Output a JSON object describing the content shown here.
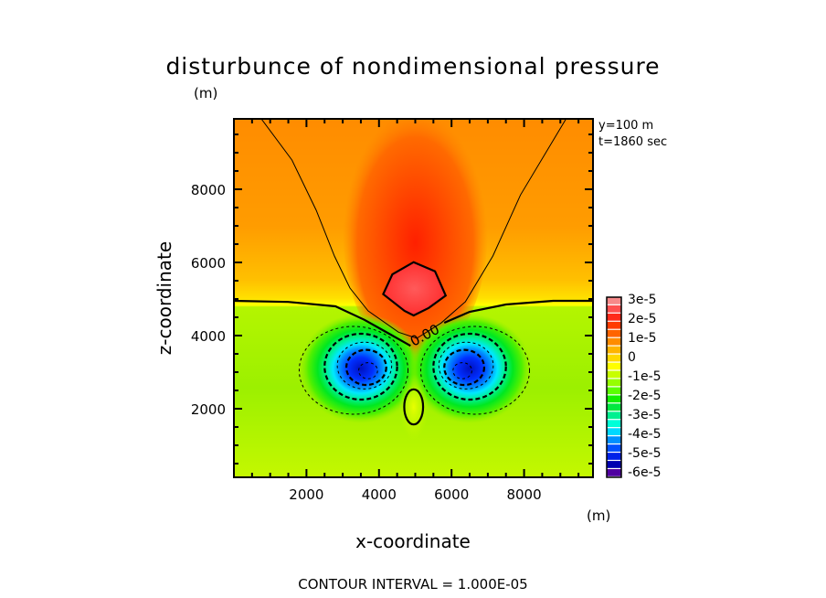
{
  "chart_data": {
    "type": "contour",
    "title": "disturbunce of nondimensional pressure",
    "y_unit": "(m)",
    "x_unit": "(m)",
    "xlabel": "x-coordinate",
    "ylabel": "z-coordinate",
    "info": [
      "y=100 m",
      "t=1860 sec"
    ],
    "footer": "CONTOUR INTERVAL = 1.000E-05",
    "xlim": [
      0,
      9900
    ],
    "ylim": [
      125,
      9925
    ],
    "x_ticks": [
      2000,
      4000,
      6000,
      8000
    ],
    "y_ticks": [
      2000,
      4000,
      6000,
      8000
    ],
    "minor_tick_step": 500,
    "contour_interval": 1e-05,
    "contour_label": "0.00",
    "colorbar": {
      "labels": [
        "3e-5",
        "2e-5",
        "1e-5",
        "0",
        "-1e-5",
        "-2e-5",
        "-3e-5",
        "-4e-5",
        "-5e-5",
        "-6e-5"
      ],
      "colors": [
        "#f78a8a",
        "#ff5050",
        "#ff2a1a",
        "#ff3c00",
        "#ff6400",
        "#ff8c00",
        "#ffb400",
        "#ffd800",
        "#ffff00",
        "#c8ff00",
        "#96ff00",
        "#5aff00",
        "#10f000",
        "#00e840",
        "#00f090",
        "#00ffd8",
        "#00d8ff",
        "#0090ff",
        "#0050ff",
        "#0020e8",
        "#0000b0",
        "#5000a0"
      ]
    },
    "features": {
      "max": {
        "value": 3e-05,
        "x": 5000,
        "z": 5300
      },
      "min": [
        {
          "value": -6e-05,
          "x": 3700,
          "z": 3050
        },
        {
          "value": -6e-05,
          "x": 6300,
          "z": 3050
        }
      ]
    },
    "contours": [
      {
        "level": 0,
        "style": "thick-solid",
        "points": [
          [
            0,
            4950
          ],
          [
            1500,
            4920
          ],
          [
            2800,
            4800
          ],
          [
            3600,
            4430
          ],
          [
            4100,
            4150
          ],
          [
            4870,
            3720
          ]
        ]
      },
      {
        "level": 0,
        "style": "thick-solid",
        "points": [
          [
            5800,
            4350
          ],
          [
            6500,
            4650
          ],
          [
            7500,
            4850
          ],
          [
            8800,
            4950
          ],
          [
            9900,
            4950
          ]
        ]
      },
      {
        "level": 1e-05,
        "style": "thin-solid",
        "points": [
          [
            756,
            9925
          ],
          [
            1600,
            8800
          ],
          [
            2270,
            7425
          ],
          [
            2770,
            6175
          ],
          [
            3200,
            5300
          ],
          [
            3700,
            4675
          ],
          [
            4540,
            4092
          ],
          [
            5040,
            3925
          ],
          [
            5710,
            4342
          ],
          [
            6380,
            4925
          ],
          [
            7140,
            6175
          ],
          [
            7900,
            7842
          ],
          [
            9156,
            9925
          ]
        ]
      },
      {
        "level": 3e-05,
        "style": "thick-solid",
        "closed": true,
        "points": [
          [
            4116,
            5133
          ],
          [
            4368,
            5675
          ],
          [
            4956,
            6008
          ],
          [
            5544,
            5758
          ],
          [
            5838,
            5092
          ],
          [
            5376,
            4758
          ],
          [
            4956,
            4550
          ],
          [
            4704,
            4675
          ]
        ]
      },
      {
        "level": 0,
        "style": "thick-solid",
        "closed": true,
        "ellipse": [
          4956,
          2050,
          260,
          480
        ]
      },
      {
        "level": -1e-05,
        "style": "thin-dashed",
        "ellipse": [
          3300,
          3050,
          1500,
          1200
        ]
      },
      {
        "level": -2e-05,
        "style": "thick-dashed",
        "ellipse": [
          3500,
          3150,
          1000,
          900
        ]
      },
      {
        "level": -3e-05,
        "style": "thin-dashed",
        "ellipse": [
          3600,
          3180,
          750,
          640
        ]
      },
      {
        "level": -4e-05,
        "style": "thick-dashed",
        "ellipse": [
          3650,
          3130,
          550,
          480
        ]
      },
      {
        "level": -5e-05,
        "style": "thin-dashed",
        "ellipse": [
          3700,
          3040,
          260,
          220
        ]
      },
      {
        "level": -1e-05,
        "style": "thin-dashed",
        "ellipse": [
          6650,
          3050,
          1500,
          1200
        ]
      },
      {
        "level": -2e-05,
        "style": "thick-dashed",
        "ellipse": [
          6500,
          3150,
          1000,
          900
        ]
      },
      {
        "level": -3e-05,
        "style": "thin-dashed",
        "ellipse": [
          6400,
          3180,
          750,
          640
        ]
      },
      {
        "level": -4e-05,
        "style": "thick-dashed",
        "ellipse": [
          6350,
          3130,
          550,
          480
        ]
      },
      {
        "level": -5e-05,
        "style": "thin-dashed",
        "ellipse": [
          6300,
          3040,
          260,
          220
        ]
      }
    ]
  }
}
